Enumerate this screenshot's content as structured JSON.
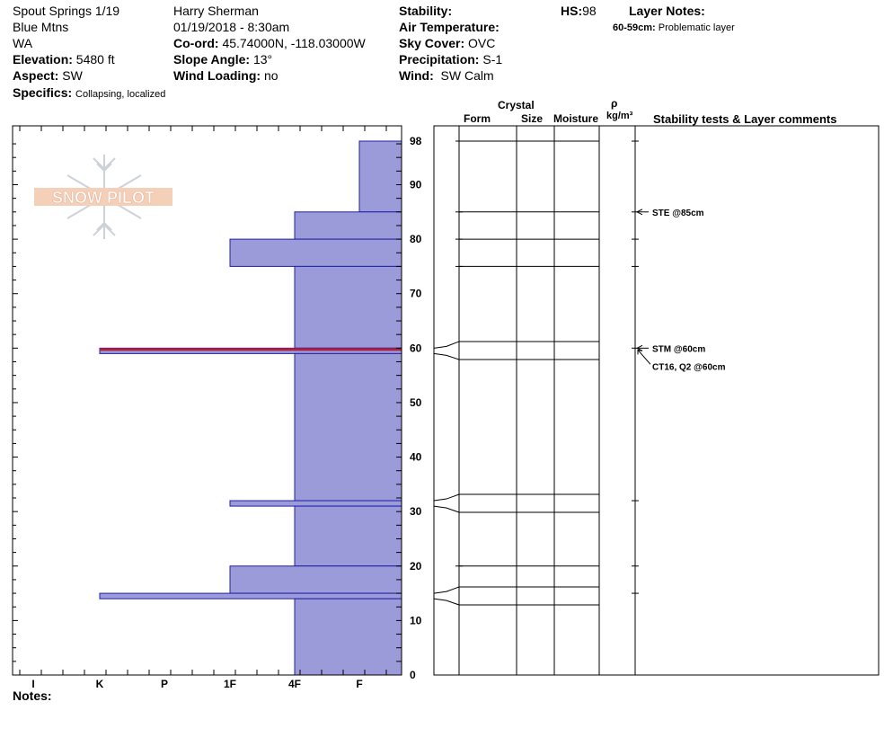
{
  "header": {
    "location": "Spout Springs 1/19",
    "range": "Blue Mtns",
    "state": "WA",
    "elevation_label": "Elevation:",
    "elevation": "5480 ft",
    "aspect_label": "Aspect:",
    "aspect": "SW",
    "specifics_label": "Specifics:",
    "specifics": "Collapsing, localized",
    "observer": "Harry Sherman",
    "datetime": "01/19/2018 - 8:30am",
    "coord_label": "Co-ord:",
    "coord": "45.74000N, -118.03000W",
    "slope_label": "Slope Angle:",
    "slope": "13°",
    "wind_loading_label": "Wind Loading:",
    "wind_loading": "no",
    "stability_label": "Stability:",
    "stability": "",
    "air_temp_label": "Air Temperature:",
    "air_temp": "",
    "sky_label": "Sky Cover:",
    "sky": "OVC",
    "precip_label": "Precipitation:",
    "precip": "S-1",
    "wind_label": "Wind:",
    "wind": "SW Calm",
    "hs_label": "HS:",
    "hs": "98",
    "layer_notes_label": "Layer Notes:",
    "layer_note_range": "60-59cm:",
    "layer_note_text": "Problematic layer"
  },
  "logo_text": "SNOW PILOT",
  "notes_label": "Notes:",
  "columns": {
    "crystal": "Crystal",
    "form": "Form",
    "size": "Size",
    "moisture": "Moisture",
    "rho": "ρ",
    "density_unit": "kg/m³",
    "stability_comments": "Stability tests & Layer comments"
  },
  "colors": {
    "layer_fill": "#9b9bd9",
    "layer_stroke": "#1f1fa8",
    "problem_layer": "#b0203a"
  },
  "chart_data": {
    "type": "bar",
    "orientation": "horizontal",
    "x_categories": [
      "I",
      "K",
      "P",
      "1F",
      "4F",
      "F"
    ],
    "y_ticks": [
      0,
      10,
      20,
      30,
      40,
      50,
      60,
      70,
      80,
      90,
      98
    ],
    "ylim": [
      0,
      98
    ],
    "layers": [
      {
        "top": 98,
        "bottom": 85,
        "hardness": "F"
      },
      {
        "top": 85,
        "bottom": 80,
        "hardness": "4F"
      },
      {
        "top": 80,
        "bottom": 75,
        "hardness": "1F"
      },
      {
        "top": 75,
        "bottom": 60,
        "hardness": "4F"
      },
      {
        "top": 60,
        "bottom": 59,
        "hardness": "K",
        "problematic": true
      },
      {
        "top": 59,
        "bottom": 32,
        "hardness": "4F"
      },
      {
        "top": 32,
        "bottom": 31,
        "hardness": "1F"
      },
      {
        "top": 31,
        "bottom": 20,
        "hardness": "4F"
      },
      {
        "top": 20,
        "bottom": 15,
        "hardness": "1F"
      },
      {
        "top": 15,
        "bottom": 14,
        "hardness": "K"
      },
      {
        "top": 14,
        "bottom": 0,
        "hardness": "4F"
      }
    ],
    "stability_tests": [
      {
        "depth": 85,
        "label": "STE @85cm"
      },
      {
        "depth": 60,
        "label": "STM @60cm"
      },
      {
        "depth": 60,
        "label": "CT16, Q2 @60cm"
      }
    ]
  }
}
